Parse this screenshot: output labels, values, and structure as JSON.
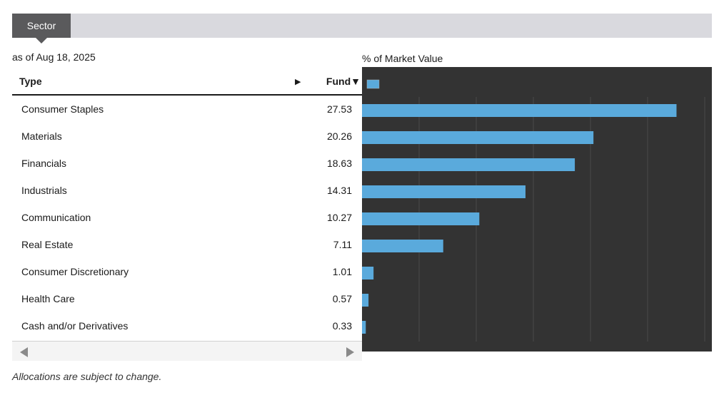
{
  "tabs": {
    "active_label": "Sector"
  },
  "as_of": "as of Aug 18, 2025",
  "table": {
    "col_type": "Type",
    "col_sort_arrow": "▶",
    "col_fund": "Fund▼"
  },
  "chart_data": {
    "type": "bar",
    "orientation": "horizontal",
    "title": "% of Market Value",
    "categories": [
      "Consumer Staples",
      "Materials",
      "Financials",
      "Industrials",
      "Communication",
      "Real Estate",
      "Consumer Discretionary",
      "Health Care",
      "Cash and/or Derivatives"
    ],
    "values": [
      27.53,
      20.26,
      18.63,
      14.31,
      10.27,
      7.11,
      1.01,
      0.57,
      0.33
    ],
    "value_labels": [
      "27.53",
      "20.26",
      "18.63",
      "14.31",
      "10.27",
      "7.11",
      "1.01",
      "0.57",
      "0.33"
    ],
    "series": [
      {
        "name": "Fund",
        "values": [
          27.53,
          20.26,
          18.63,
          14.31,
          10.27,
          7.11,
          1.01,
          0.57,
          0.33
        ]
      }
    ],
    "xlim": [
      0,
      30
    ],
    "grid": true,
    "legend": "top-left",
    "bar_color": "#5aaadc",
    "background_color": "#333333"
  },
  "footnote": "Allocations are subject to change."
}
